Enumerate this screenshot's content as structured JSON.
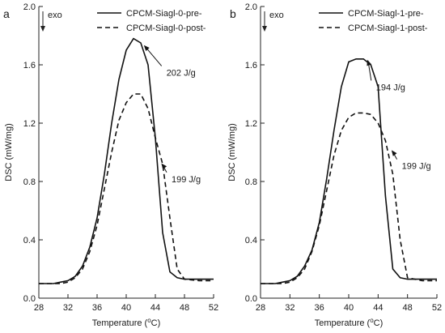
{
  "chart_data": [
    {
      "type": "line",
      "panel_label": "a",
      "xlabel": "Temperature (",
      "xlabel_unit": "o",
      "xlabel_tail": "C)",
      "ylabel": "DSC (mW/mg)",
      "xlim": [
        28,
        52
      ],
      "ylim": [
        0.0,
        2.0
      ],
      "x_ticks": [
        28,
        32,
        36,
        40,
        44,
        48,
        52
      ],
      "y_ticks": [
        "0.0",
        "0.4",
        "0.8",
        "1.2",
        "1.6",
        "2.0"
      ],
      "exo_label": "exo",
      "legend_position": "top-right",
      "series": [
        {
          "name": "CPCM-Siagl-0-pre-",
          "style": "solid",
          "x": [
            28,
            30,
            31,
            32,
            33,
            34,
            35,
            36,
            37,
            38,
            39,
            40,
            41,
            42,
            43,
            44,
            45,
            46,
            47,
            48,
            50,
            52
          ],
          "y": [
            0.1,
            0.1,
            0.11,
            0.12,
            0.15,
            0.22,
            0.35,
            0.55,
            0.85,
            1.2,
            1.5,
            1.7,
            1.78,
            1.75,
            1.6,
            1.1,
            0.45,
            0.18,
            0.14,
            0.13,
            0.13,
            0.13
          ]
        },
        {
          "name": "CPCM-Siagl-0-post-",
          "style": "dashed",
          "x": [
            28,
            30,
            31,
            32,
            33,
            34,
            35,
            36,
            37,
            38,
            39,
            40,
            41,
            42,
            43,
            44,
            45,
            46,
            47,
            48,
            50,
            52
          ],
          "y": [
            0.1,
            0.1,
            0.1,
            0.11,
            0.14,
            0.2,
            0.32,
            0.5,
            0.75,
            1.0,
            1.22,
            1.34,
            1.4,
            1.4,
            1.3,
            1.1,
            0.92,
            0.55,
            0.2,
            0.13,
            0.12,
            0.12
          ]
        }
      ],
      "annotations": [
        {
          "text": "202 J/g",
          "target": [
            42.2,
            1.74
          ],
          "label_pos": [
            45.3,
            1.57
          ]
        },
        {
          "text": "199 J/g",
          "target": [
            44.6,
            0.93
          ],
          "label_pos": [
            46.0,
            0.84
          ]
        }
      ]
    },
    {
      "type": "line",
      "panel_label": "b",
      "xlabel": "Temperature (",
      "xlabel_unit": "o",
      "xlabel_tail": "C)",
      "ylabel": "DSC (mW/mg)",
      "xlim": [
        28,
        52
      ],
      "ylim": [
        0.0,
        2.0
      ],
      "x_ticks": [
        28,
        32,
        36,
        40,
        44,
        48,
        52
      ],
      "y_ticks": [
        "0.0",
        "0.4",
        "0.8",
        "1.2",
        "1.6",
        "2.0"
      ],
      "exo_label": "exo",
      "legend_position": "top-right",
      "series": [
        {
          "name": "CPCM-Siagl-1-pre-",
          "style": "solid",
          "x": [
            28,
            30,
            31,
            32,
            33,
            34,
            35,
            36,
            37,
            38,
            39,
            40,
            41,
            42,
            43,
            44,
            45,
            46,
            47,
            48,
            50,
            52
          ],
          "y": [
            0.1,
            0.1,
            0.11,
            0.12,
            0.15,
            0.22,
            0.33,
            0.52,
            0.82,
            1.15,
            1.45,
            1.62,
            1.64,
            1.64,
            1.6,
            1.45,
            0.7,
            0.2,
            0.14,
            0.13,
            0.13,
            0.13
          ]
        },
        {
          "name": "CPCM-Siagl-1-post-",
          "style": "dashed",
          "x": [
            28,
            30,
            31,
            32,
            33,
            34,
            35,
            36,
            37,
            38,
            39,
            40,
            41,
            42,
            43,
            44,
            45,
            46,
            47,
            48,
            50,
            52
          ],
          "y": [
            0.1,
            0.1,
            0.1,
            0.11,
            0.14,
            0.2,
            0.32,
            0.5,
            0.74,
            0.98,
            1.15,
            1.24,
            1.27,
            1.27,
            1.26,
            1.2,
            1.08,
            0.85,
            0.4,
            0.14,
            0.12,
            0.12
          ]
        }
      ],
      "annotations": [
        {
          "text": "194 J/g",
          "target": [
            42.3,
            1.64
          ],
          "label_pos": [
            43.5,
            1.47
          ]
        },
        {
          "text": "199 J/g",
          "target": [
            45.6,
            1.02
          ],
          "label_pos": [
            47.0,
            0.93
          ]
        }
      ]
    }
  ]
}
